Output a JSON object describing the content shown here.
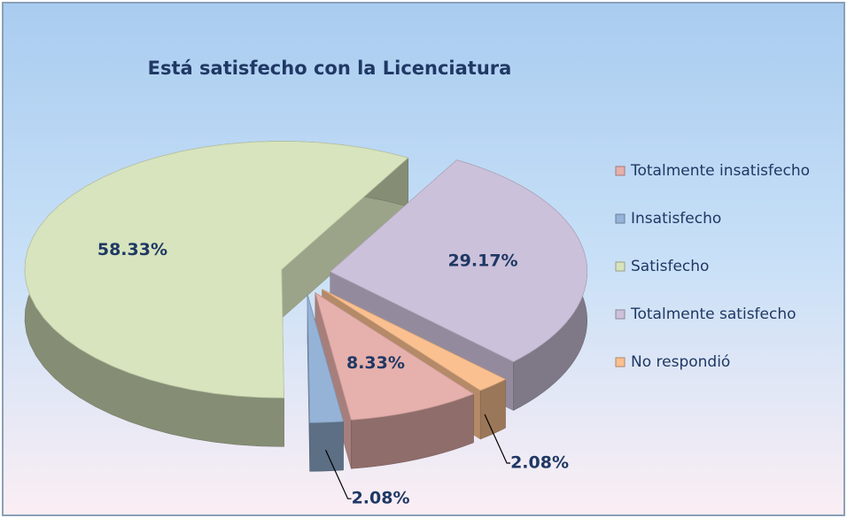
{
  "chart_data": {
    "type": "pie",
    "title": "Está satisfecho con la Licenciatura",
    "categories": [
      "Totalmente insatisfecho",
      "Insatisfecho",
      "Satisfecho",
      "Totalmente satisfecho",
      "No respondió"
    ],
    "values": [
      8.33,
      2.08,
      58.33,
      29.17,
      2.08
    ],
    "value_labels": [
      "8.33%",
      "2.08%",
      "58.33%",
      "29.17%",
      "2.08%"
    ],
    "colors": [
      "#e6b0ac",
      "#95b3d7",
      "#d7e4bd",
      "#ccc1da",
      "#fac090"
    ],
    "legend": "right"
  }
}
